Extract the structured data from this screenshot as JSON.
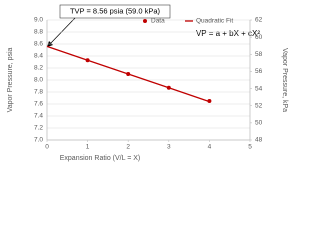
{
  "chart_data": {
    "type": "scatter",
    "x_label": "Expansion Ratio (V/L = X)",
    "y_label": "Vapor Pressure, psia",
    "y2_label": "Vapor Pressure, kPa",
    "annotations": [
      "TVP = 8.56 psia (59.0 kPa)",
      "VP = a + bX + cX²"
    ],
    "series": [
      {
        "name": "Data",
        "color": "#c00000",
        "style": "markers",
        "x": [
          1,
          2,
          3,
          4
        ],
        "values": [
          8.33,
          8.1,
          7.87,
          7.65
        ]
      },
      {
        "name": "Quadratic Fit",
        "color": "#c00000",
        "style": "line",
        "x": [
          0,
          1,
          2,
          3,
          4
        ],
        "values": [
          8.56,
          8.33,
          8.1,
          7.87,
          7.64
        ]
      }
    ],
    "xlim": [
      0,
      5
    ],
    "xticks": [
      0,
      1,
      2,
      3,
      4,
      5
    ],
    "ylim": [
      7,
      9
    ],
    "yticks": [
      {
        "value": 7,
        "label": "7.0"
      },
      {
        "value": 7.2,
        "label": "7.2"
      },
      {
        "value": 7.4,
        "label": "7.4"
      },
      {
        "value": 7.6,
        "label": "7.6"
      },
      {
        "value": 7.8,
        "label": "7.8"
      },
      {
        "value": 8,
        "label": "8.0"
      },
      {
        "value": 8.2,
        "label": "8.2"
      },
      {
        "value": 8.4,
        "label": "8.4"
      },
      {
        "value": 8.6,
        "label": "8.6"
      },
      {
        "value": 8.8,
        "label": "8.8"
      },
      {
        "value": 9,
        "label": "9.0"
      }
    ],
    "y2lim": [
      48,
      62
    ],
    "y2ticks": [
      48,
      50,
      52,
      54,
      56,
      58,
      60,
      62
    ],
    "grid": true
  }
}
